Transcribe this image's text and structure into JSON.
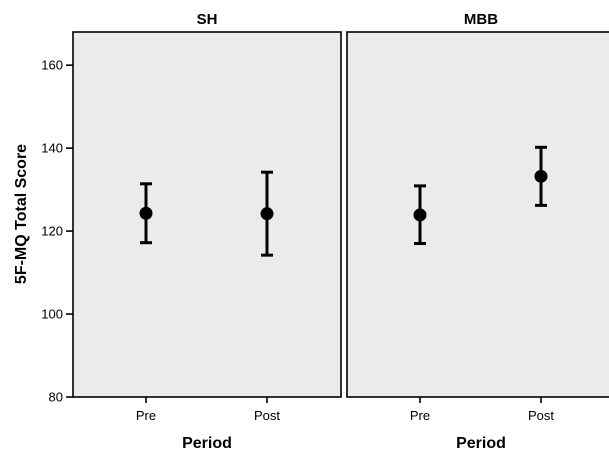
{
  "chart_data": {
    "type": "scatter",
    "ylabel": "5F-MQ Total Score",
    "ylim": [
      80,
      168
    ],
    "yticks": [
      80,
      100,
      120,
      140,
      160
    ],
    "grid": false,
    "categories": [
      "Pre",
      "Post"
    ],
    "panels": [
      {
        "title": "SH",
        "xlabel": "Period",
        "points": [
          {
            "x": "Pre",
            "mean": 124.3,
            "lower": 117.2,
            "upper": 131.4
          },
          {
            "x": "Post",
            "mean": 124.2,
            "lower": 114.2,
            "upper": 134.2
          }
        ]
      },
      {
        "title": "MBB",
        "xlabel": "Period",
        "points": [
          {
            "x": "Pre",
            "mean": 123.9,
            "lower": 117.0,
            "upper": 130.9
          },
          {
            "x": "Post",
            "mean": 133.2,
            "lower": 126.2,
            "upper": 140.2
          }
        ]
      }
    ]
  },
  "colors": {
    "panel_bg": "#ebebeb",
    "marker": "#000000",
    "axis": "#000000"
  }
}
